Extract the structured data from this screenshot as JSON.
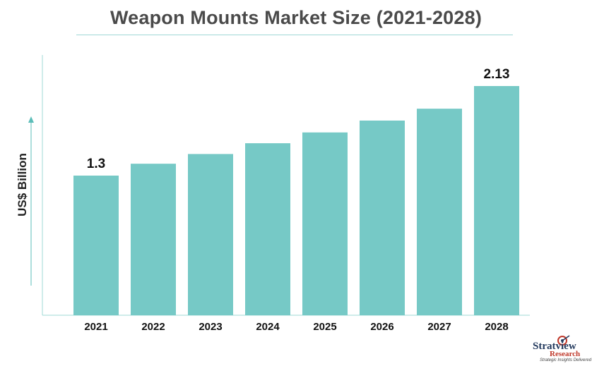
{
  "title": "Weapon Mounts Market Size (2021-2028)",
  "logo": {
    "brand": "Stratview",
    "sub": "Research",
    "tagline": "Strategic Insights Delivered"
  },
  "colors": {
    "bar": "#76c9c6",
    "axis": "#9fd8d6",
    "text": "#222222"
  },
  "chart_data": {
    "type": "bar",
    "title": "Weapon Mounts Market Size (2021-2028)",
    "xlabel": "",
    "ylabel": "US$ Billion",
    "categories": [
      "2021",
      "2022",
      "2023",
      "2024",
      "2025",
      "2026",
      "2027",
      "2028"
    ],
    "values": [
      1.3,
      1.41,
      1.5,
      1.6,
      1.7,
      1.81,
      1.92,
      2.13
    ],
    "data_labels": [
      {
        "index": 0,
        "text": "1.3"
      },
      {
        "index": 7,
        "text": "2.13"
      }
    ],
    "ylim": [
      0,
      2.5
    ],
    "grid": false,
    "legend": "none"
  }
}
